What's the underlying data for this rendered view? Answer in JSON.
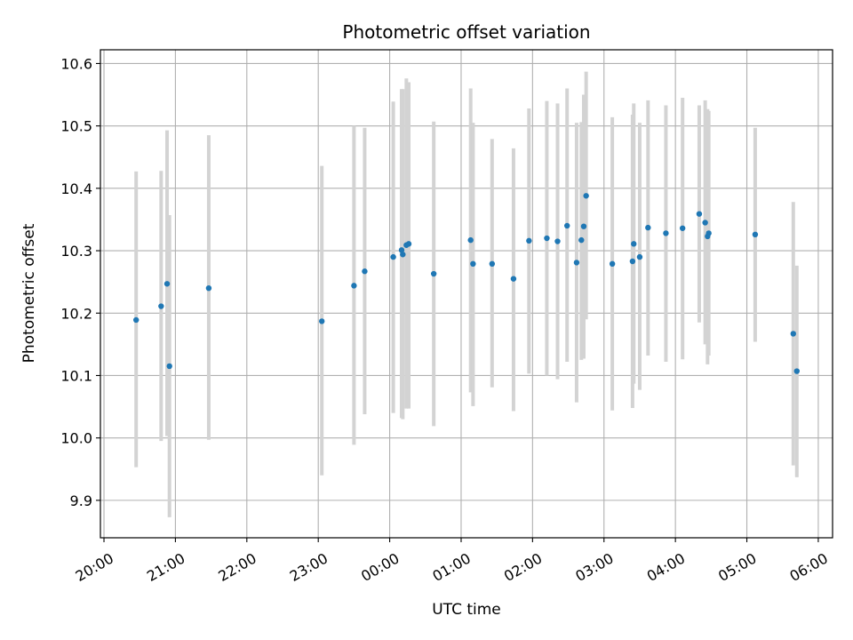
{
  "chart_data": {
    "type": "scatter",
    "title": "Photometric offset variation",
    "xlabel": "UTC time",
    "ylabel": "Photometric offset",
    "x_tick_labels": [
      "20:00",
      "21:00",
      "22:00",
      "23:00",
      "00:00",
      "01:00",
      "02:00",
      "03:00",
      "04:00",
      "05:00",
      "06:00"
    ],
    "x_ticks_hours": [
      20,
      21,
      22,
      23,
      24,
      25,
      26,
      27,
      28,
      29,
      30
    ],
    "y_ticks": [
      9.9,
      10.0,
      10.1,
      10.2,
      10.3,
      10.4,
      10.5,
      10.6
    ],
    "y_tick_labels": [
      "9.9",
      "10.0",
      "10.1",
      "10.2",
      "10.3",
      "10.4",
      "10.5",
      "10.6"
    ],
    "xlim_hours": [
      19.95,
      30.2
    ],
    "ylim": [
      9.84,
      10.622
    ],
    "grid": true,
    "marker_color": "#1f77b4",
    "errorbar_color": "#d3d3d3",
    "points": [
      {
        "x": "20:27",
        "y": 10.189,
        "ylo": 9.953,
        "yhi": 10.427
      },
      {
        "x": "20:48",
        "y": 10.211,
        "ylo": 9.995,
        "yhi": 10.428
      },
      {
        "x": "20:53",
        "y": 10.247,
        "ylo": 10.003,
        "yhi": 10.493
      },
      {
        "x": "20:55",
        "y": 10.115,
        "ylo": 9.873,
        "yhi": 10.357
      },
      {
        "x": "21:28",
        "y": 10.24,
        "ylo": 9.997,
        "yhi": 10.485
      },
      {
        "x": "23:03",
        "y": 10.187,
        "ylo": 9.94,
        "yhi": 10.436
      },
      {
        "x": "23:30",
        "y": 10.244,
        "ylo": 9.989,
        "yhi": 10.5
      },
      {
        "x": "23:39",
        "y": 10.267,
        "ylo": 10.038,
        "yhi": 10.497
      },
      {
        "x": "00:03",
        "y": 10.29,
        "ylo": 10.04,
        "yhi": 10.539
      },
      {
        "x": "00:10",
        "y": 10.301,
        "ylo": 10.032,
        "yhi": 10.559
      },
      {
        "x": "00:11",
        "y": 10.294,
        "ylo": 10.03,
        "yhi": 10.559
      },
      {
        "x": "00:14",
        "y": 10.309,
        "ylo": 10.047,
        "yhi": 10.576
      },
      {
        "x": "00:16",
        "y": 10.311,
        "ylo": 10.047,
        "yhi": 10.57
      },
      {
        "x": "00:37",
        "y": 10.263,
        "ylo": 10.019,
        "yhi": 10.507
      },
      {
        "x": "01:08",
        "y": 10.317,
        "ylo": 10.073,
        "yhi": 10.56
      },
      {
        "x": "01:10",
        "y": 10.279,
        "ylo": 10.051,
        "yhi": 10.505
      },
      {
        "x": "01:26",
        "y": 10.279,
        "ylo": 10.081,
        "yhi": 10.479
      },
      {
        "x": "01:44",
        "y": 10.255,
        "ylo": 10.043,
        "yhi": 10.464
      },
      {
        "x": "01:57",
        "y": 10.316,
        "ylo": 10.103,
        "yhi": 10.528
      },
      {
        "x": "02:12",
        "y": 10.32,
        "ylo": 10.1,
        "yhi": 10.54
      },
      {
        "x": "02:21",
        "y": 10.315,
        "ylo": 10.094,
        "yhi": 10.536
      },
      {
        "x": "02:29",
        "y": 10.34,
        "ylo": 10.122,
        "yhi": 10.56
      },
      {
        "x": "02:37",
        "y": 10.281,
        "ylo": 10.057,
        "yhi": 10.505
      },
      {
        "x": "02:41",
        "y": 10.317,
        "ylo": 10.125,
        "yhi": 10.506
      },
      {
        "x": "02:43",
        "y": 10.339,
        "ylo": 10.127,
        "yhi": 10.55
      },
      {
        "x": "02:45",
        "y": 10.388,
        "ylo": 10.19,
        "yhi": 10.587
      },
      {
        "x": "03:07",
        "y": 10.279,
        "ylo": 10.044,
        "yhi": 10.514
      },
      {
        "x": "03:24",
        "y": 10.283,
        "ylo": 10.048,
        "yhi": 10.518
      },
      {
        "x": "03:25",
        "y": 10.311,
        "ylo": 10.087,
        "yhi": 10.536
      },
      {
        "x": "03:30",
        "y": 10.29,
        "ylo": 10.077,
        "yhi": 10.505
      },
      {
        "x": "03:37",
        "y": 10.337,
        "ylo": 10.132,
        "yhi": 10.541
      },
      {
        "x": "03:52",
        "y": 10.328,
        "ylo": 10.122,
        "yhi": 10.533
      },
      {
        "x": "04:06",
        "y": 10.336,
        "ylo": 10.126,
        "yhi": 10.545
      },
      {
        "x": "04:20",
        "y": 10.359,
        "ylo": 10.185,
        "yhi": 10.533
      },
      {
        "x": "04:25",
        "y": 10.345,
        "ylo": 10.15,
        "yhi": 10.541
      },
      {
        "x": "04:27",
        "y": 10.323,
        "ylo": 10.118,
        "yhi": 10.527
      },
      {
        "x": "04:28",
        "y": 10.328,
        "ylo": 10.132,
        "yhi": 10.524
      },
      {
        "x": "05:07",
        "y": 10.326,
        "ylo": 10.154,
        "yhi": 10.497
      },
      {
        "x": "05:39",
        "y": 10.167,
        "ylo": 9.956,
        "yhi": 10.378
      },
      {
        "x": "05:42",
        "y": 10.107,
        "ylo": 9.937,
        "yhi": 10.276
      }
    ]
  }
}
